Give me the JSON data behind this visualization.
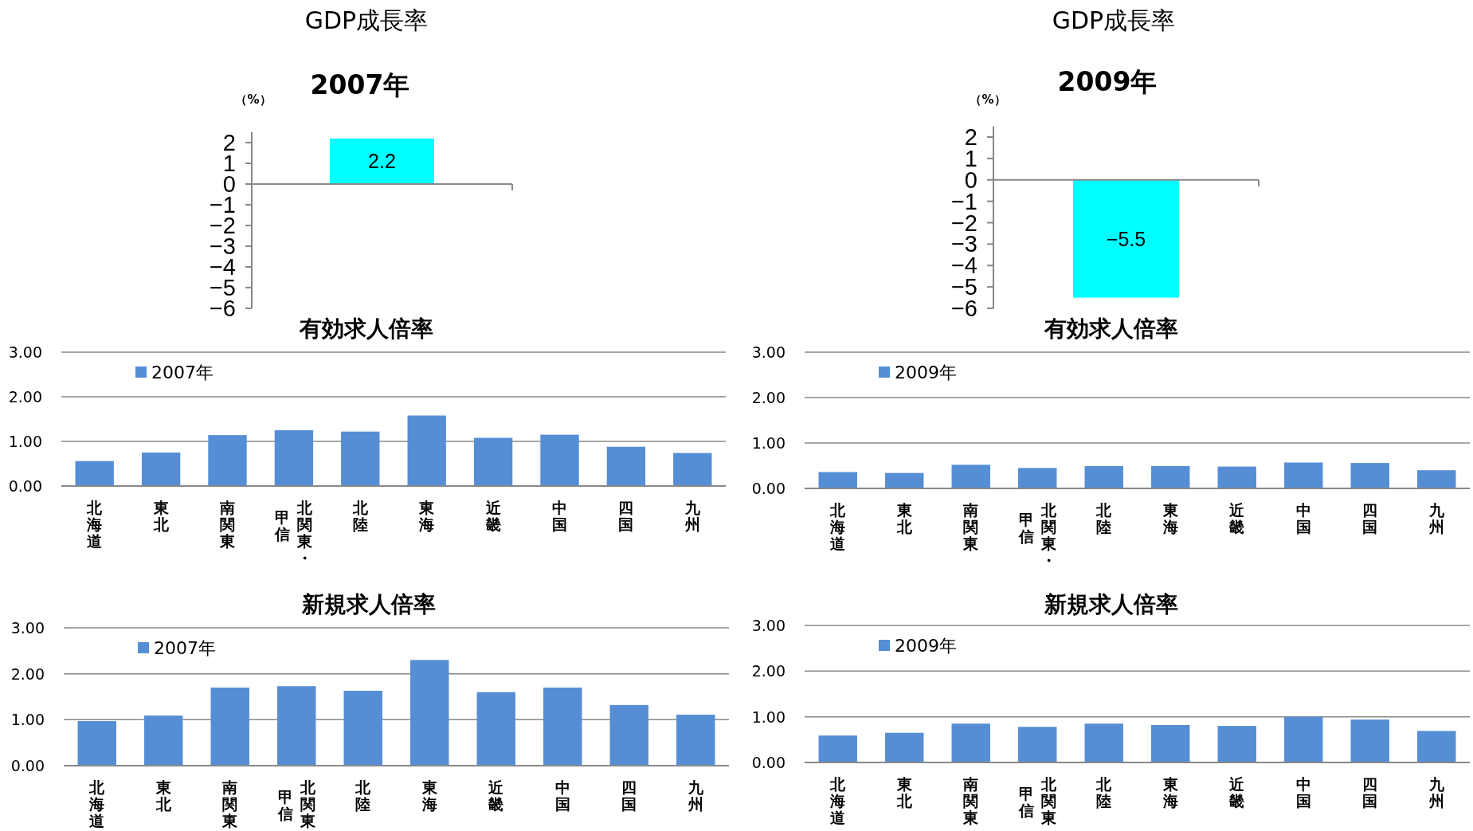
{
  "chart_data": [
    {
      "type": "bar",
      "title": "GDP成長率",
      "subtitle": "2007年",
      "ylabel": "（%）",
      "categories": [
        null
      ],
      "values": [
        2.2
      ],
      "color": "#00ffff",
      "data_labels": true,
      "ylim": [
        -6,
        2.5
      ],
      "yticks": [
        -6,
        -5,
        -4,
        -3,
        -2,
        -1,
        0,
        1,
        2
      ],
      "legend": false
    },
    {
      "type": "bar",
      "title": "GDP成長率",
      "subtitle": "2009年",
      "ylabel": "（%）",
      "categories": [
        null
      ],
      "values": [
        -5.5
      ],
      "color": "#00ffff",
      "data_labels": true,
      "ylim": [
        -6,
        2.5
      ],
      "yticks": [
        -6,
        -5,
        -4,
        -3,
        -2,
        -1,
        0,
        1,
        2
      ],
      "legend": false
    },
    {
      "type": "bar",
      "title": "有効求人倍率",
      "categories": [
        "北海道",
        "東北",
        "南関東",
        "北関東・甲信",
        "北陸",
        "東海",
        "近畿",
        "中国",
        "四国",
        "九州"
      ],
      "series": [
        {
          "name": "2007年",
          "color": "#558ed5",
          "values": [
            0.56,
            0.75,
            1.14,
            1.25,
            1.22,
            1.58,
            1.08,
            1.15,
            0.88,
            0.74
          ]
        }
      ],
      "ylim": [
        0,
        3
      ],
      "yticks": [
        {
          "value": 0,
          "label": "0.00"
        },
        {
          "value": 1,
          "label": "1.00"
        },
        {
          "value": 2,
          "label": "2.00"
        },
        {
          "value": 3,
          "label": "3.00"
        }
      ],
      "grid": "y",
      "legend": "top left"
    },
    {
      "type": "bar",
      "title": "有効求人倍率",
      "categories": [
        "北海道",
        "東北",
        "南関東",
        "北関東・甲信",
        "北陸",
        "東海",
        "近畿",
        "中国",
        "四国",
        "九州"
      ],
      "series": [
        {
          "name": "2009年",
          "color": "#558ed5",
          "values": [
            0.36,
            0.34,
            0.52,
            0.45,
            0.49,
            0.49,
            0.48,
            0.57,
            0.56,
            0.4
          ]
        }
      ],
      "ylim": [
        0,
        3
      ],
      "yticks": [
        {
          "value": 0,
          "label": "0.00"
        },
        {
          "value": 1,
          "label": "1.00"
        },
        {
          "value": 2,
          "label": "2.00"
        },
        {
          "value": 3,
          "label": "3.00"
        }
      ],
      "grid": "y",
      "legend": "top left"
    },
    {
      "type": "bar",
      "title": "新規求人倍率",
      "categories": [
        "北海道",
        "東北",
        "南関東",
        "北関東・甲信",
        "北陸",
        "東海",
        "近畿",
        "中国",
        "四国",
        "九州"
      ],
      "series": [
        {
          "name": "2007年",
          "color": "#558ed5",
          "values": [
            0.97,
            1.09,
            1.7,
            1.73,
            1.63,
            2.3,
            1.6,
            1.7,
            1.32,
            1.11
          ]
        }
      ],
      "ylim": [
        0,
        3
      ],
      "yticks": [
        {
          "value": 0,
          "label": "0.00"
        },
        {
          "value": 1,
          "label": "1.00"
        },
        {
          "value": 2,
          "label": "2.00"
        },
        {
          "value": 3,
          "label": "3.00"
        }
      ],
      "grid": "y",
      "legend": "top left"
    },
    {
      "type": "bar",
      "title": "新規求人倍率",
      "categories": [
        "北海道",
        "東北",
        "南関東",
        "北関東・甲信",
        "北陸",
        "東海",
        "近畿",
        "中国",
        "四国",
        "九州"
      ],
      "series": [
        {
          "name": "2009年",
          "color": "#558ed5",
          "values": [
            0.59,
            0.65,
            0.85,
            0.78,
            0.85,
            0.82,
            0.8,
            1.0,
            0.94,
            0.69
          ]
        }
      ],
      "ylim": [
        0,
        3
      ],
      "yticks": [
        {
          "value": 0,
          "label": "0.00"
        },
        {
          "value": 1,
          "label": "1.00"
        },
        {
          "value": 2,
          "label": "2.00"
        },
        {
          "value": 3,
          "label": "3.00"
        }
      ],
      "grid": "y",
      "legend": "top left"
    }
  ]
}
